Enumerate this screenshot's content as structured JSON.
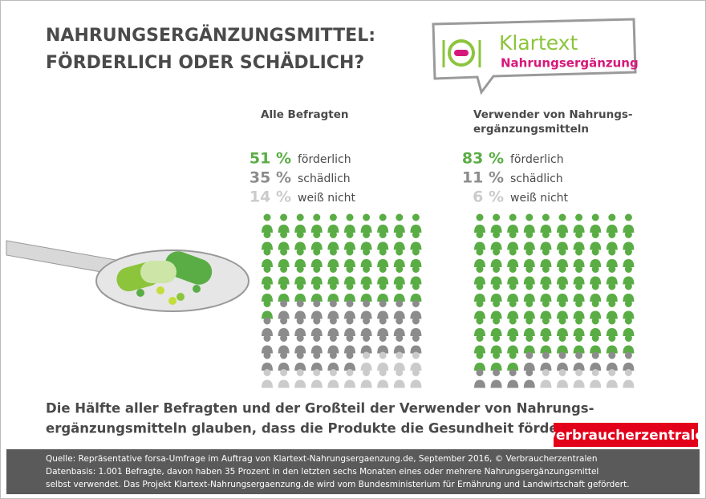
{
  "header": {
    "title": [
      "NAHRUNGSERGÄNZUNGSMITTEL:",
      "FÖRDERLICH ODER SCHÄDLICH?"
    ]
  },
  "logo": {
    "line1": "Klartext",
    "line2": "Nahrungsergänzung"
  },
  "chart_data": [
    {
      "type": "pictogram",
      "title": [
        "Alle Befragten"
      ],
      "categories": [
        "förderlich",
        "schädlich",
        "weiß nicht"
      ],
      "values": [
        51,
        35,
        14
      ],
      "value_labels": [
        "51 %",
        "35 %",
        "14 %"
      ],
      "colors": [
        "#5aad45",
        "#8c8c8c",
        "#cbcbcb"
      ]
    },
    {
      "type": "pictogram",
      "title": [
        "Verwender von Nahrungs-",
        "ergänzungsmitteln"
      ],
      "categories": [
        "förderlich",
        "schädlich",
        "weiß nicht"
      ],
      "values": [
        83,
        11,
        6
      ],
      "value_labels": [
        "83 %",
        "11 %",
        "6 %"
      ],
      "colors": [
        "#5aad45",
        "#8c8c8c",
        "#cbcbcb"
      ]
    }
  ],
  "caption": [
    "Die Hälfte aller Befragten und der Großteil der Verwender von Nahrungs-",
    "ergänzungsmitteln glauben, dass die Produkte die Gesundheit fördern."
  ],
  "brand": "verbraucherzentrale",
  "footer": [
    "Quelle: Repräsentative forsa-Umfrage im Auftrag von Klartext-Nahrungsergaenzung.de, September 2016, © Verbraucherzentralen",
    "Datenbasis: 1.001 Befragte, davon haben 35 Prozent in den letzten sechs Monaten eines oder mehrere Nahrungsergänzungsmittel",
    "selbst verwendet. Das Projekt Klartext-Nahrungsergaenzung.de wird vom Bundesministerium für Ernährung und Landwirtschaft gefördert."
  ]
}
